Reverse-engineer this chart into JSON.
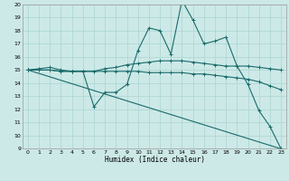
{
  "xlabel": "Humidex (Indice chaleur)",
  "xlim": [
    -0.5,
    23.5
  ],
  "ylim": [
    9,
    20
  ],
  "yticks": [
    9,
    10,
    11,
    12,
    13,
    14,
    15,
    16,
    17,
    18,
    19,
    20
  ],
  "xticks": [
    0,
    1,
    2,
    3,
    4,
    5,
    6,
    7,
    8,
    9,
    10,
    11,
    12,
    13,
    14,
    15,
    16,
    17,
    18,
    19,
    20,
    21,
    22,
    23
  ],
  "background_color": "#cce9e7",
  "grid_color": "#aad4d1",
  "line_color": "#1a6b6b",
  "lines": [
    {
      "x": [
        0,
        1,
        2,
        3,
        4,
        5,
        6,
        7,
        8,
        9,
        10,
        11,
        12,
        13,
        14,
        15,
        16,
        17,
        18,
        19,
        20,
        21,
        22,
        23
      ],
      "y": [
        15,
        15,
        15,
        14.9,
        14.9,
        14.9,
        12.2,
        13.3,
        13.3,
        13.9,
        16.5,
        18.2,
        18.0,
        16.2,
        20.3,
        18.8,
        17.0,
        17.2,
        17.5,
        15.3,
        13.9,
        11.9,
        10.7,
        9.0
      ]
    },
    {
      "x": [
        0,
        1,
        2,
        3,
        4,
        5,
        6,
        7,
        8,
        9,
        10,
        11,
        12,
        13,
        14,
        15,
        16,
        17,
        18,
        19,
        20,
        21,
        22,
        23
      ],
      "y": [
        15,
        15.1,
        15.2,
        15.0,
        14.9,
        14.9,
        14.9,
        15.1,
        15.2,
        15.4,
        15.5,
        15.6,
        15.7,
        15.7,
        15.7,
        15.6,
        15.5,
        15.4,
        15.3,
        15.3,
        15.3,
        15.2,
        15.1,
        15.0
      ]
    },
    {
      "x": [
        0,
        1,
        2,
        3,
        4,
        5,
        6,
        7,
        8,
        9,
        10,
        11,
        12,
        13,
        14,
        15,
        16,
        17,
        18,
        19,
        20,
        21,
        22,
        23
      ],
      "y": [
        15,
        15.0,
        15.0,
        14.9,
        14.9,
        14.9,
        14.9,
        14.9,
        14.9,
        14.9,
        14.9,
        14.8,
        14.8,
        14.8,
        14.8,
        14.7,
        14.7,
        14.6,
        14.5,
        14.4,
        14.3,
        14.1,
        13.8,
        13.5
      ]
    },
    {
      "x": [
        0,
        23
      ],
      "y": [
        15,
        9.0
      ]
    }
  ]
}
